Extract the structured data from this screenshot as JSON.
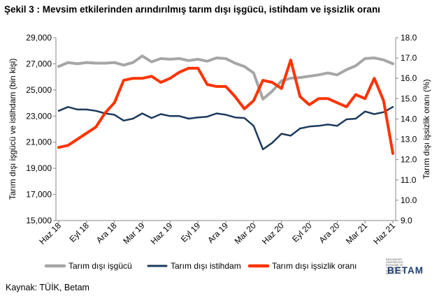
{
  "title": "Şekil 3 : Mevsim etkilerinden arındırılmış tarım dışı işgücü, istihdam ve işsizlik oranı",
  "source": "Kaynak: TÜİK, Betam",
  "logo": {
    "brand": "BETAM",
    "small_text": "BAHÇEŞEHİR ÜNİVERSİTESİ EKONOMİK VE TOPLUMSAL ARAŞTIRMALAR MERKEZİ"
  },
  "chart_data": {
    "type": "line",
    "title": "Şekil 3 : Mevsim etkilerinden arındırılmış tarım dışı işgücü, istihdam ve işsizlik oranı",
    "ylabel": "Tarım dışı işgücü ve istihdam (bin kişi)",
    "y2label": "Tarım dışı işsizlik oranı (%)",
    "ylim": [
      15000,
      29000
    ],
    "y2lim": [
      9.0,
      18.0
    ],
    "yticks": [
      15000,
      17000,
      19000,
      21000,
      23000,
      25000,
      27000,
      29000
    ],
    "yticklabels": [
      "15,000",
      "17,000",
      "19,000",
      "21,000",
      "23,000",
      "25,000",
      "27,000",
      "29,000"
    ],
    "y2ticks": [
      9.0,
      10.0,
      11.0,
      12.0,
      13.0,
      14.0,
      15.0,
      16.0,
      17.0,
      18.0
    ],
    "y2ticklabels": [
      "9.0",
      "10.0",
      "11.0",
      "12.0",
      "13.0",
      "14.0",
      "15.0",
      "16.0",
      "17.0",
      "18.0"
    ],
    "x_ticklabels": [
      "Haz 18",
      "Eyl 18",
      "Ara 18",
      "Mar 19",
      "Haz 19",
      "Eyl 19",
      "Ara 19",
      "Mar 20",
      "Haz 20",
      "Eyl 20",
      "Ara 20",
      "Mar 21",
      "Haz 21"
    ],
    "x_tick_every": 3,
    "grid": false,
    "legend_position": "bottom",
    "series": [
      {
        "name": "Tarım dışı işgücü",
        "axis": "left",
        "color": "#a6a6a6",
        "values": [
          26800,
          27100,
          27000,
          27100,
          27050,
          27050,
          27100,
          26900,
          27100,
          27600,
          27150,
          27400,
          27350,
          27400,
          27250,
          27350,
          27200,
          27450,
          27400,
          27050,
          26800,
          26300,
          24300,
          24900,
          25700,
          25900,
          25950,
          26050,
          26150,
          26300,
          26150,
          26550,
          26850,
          27400,
          27450,
          27300,
          27000
        ]
      },
      {
        "name": "Tarım dışı istihdam",
        "axis": "left",
        "color": "#1c3a5c",
        "values": [
          23400,
          23700,
          23500,
          23500,
          23400,
          23200,
          23100,
          22650,
          22800,
          23200,
          22850,
          23150,
          23000,
          23000,
          22800,
          22900,
          22950,
          23200,
          23100,
          22900,
          22850,
          22250,
          20450,
          20950,
          21650,
          21500,
          22050,
          22200,
          22250,
          22350,
          22250,
          22750,
          22800,
          23350,
          23150,
          23300,
          23700
        ]
      },
      {
        "name": "Tarım dışı işsizlik oranı",
        "axis": "right",
        "color": "#ff3300",
        "values": [
          12.6,
          12.7,
          13.0,
          13.3,
          13.6,
          14.3,
          14.8,
          15.9,
          16.0,
          16.0,
          16.1,
          15.8,
          16.0,
          16.3,
          16.5,
          16.5,
          15.7,
          15.6,
          15.6,
          15.1,
          14.5,
          14.9,
          15.9,
          15.8,
          15.5,
          16.9,
          15.1,
          14.7,
          15.0,
          15.0,
          14.8,
          14.6,
          15.2,
          15.0,
          16.0,
          14.9,
          12.3
        ]
      }
    ]
  }
}
